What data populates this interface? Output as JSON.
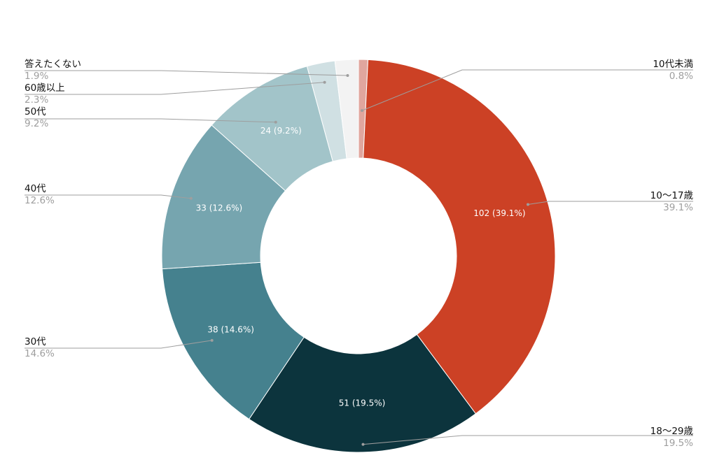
{
  "chart_data": {
    "type": "pie",
    "donut": true,
    "legend": "callouts",
    "slices": [
      {
        "name": "10代未満",
        "value": 2,
        "label": "",
        "pct_label": "0.8%",
        "color": "#e0a69e"
      },
      {
        "name": "10〜17歳",
        "value": 102,
        "label": "102 (39.1%)",
        "pct_label": "39.1%",
        "color": "#cc4125"
      },
      {
        "name": "18〜29歳",
        "value": 51,
        "label": "51 (19.5%)",
        "pct_label": "19.5%",
        "color": "#0c343d"
      },
      {
        "name": "30代",
        "value": 38,
        "label": "38 (14.6%)",
        "pct_label": "14.6%",
        "color": "#45818e"
      },
      {
        "name": "40代",
        "value": 33,
        "label": "33 (12.6%)",
        "pct_label": "12.6%",
        "color": "#76a5af"
      },
      {
        "name": "50代",
        "value": 24,
        "label": "24 (9.2%)",
        "pct_label": "9.2%",
        "color": "#a2c4c9"
      },
      {
        "name": "60歳以上",
        "value": 6,
        "label": "",
        "pct_label": "2.3%",
        "color": "#d0e0e3"
      },
      {
        "name": "答えたくない",
        "value": 5,
        "label": "",
        "pct_label": "1.9%",
        "color": "#f3f3f3"
      }
    ]
  }
}
